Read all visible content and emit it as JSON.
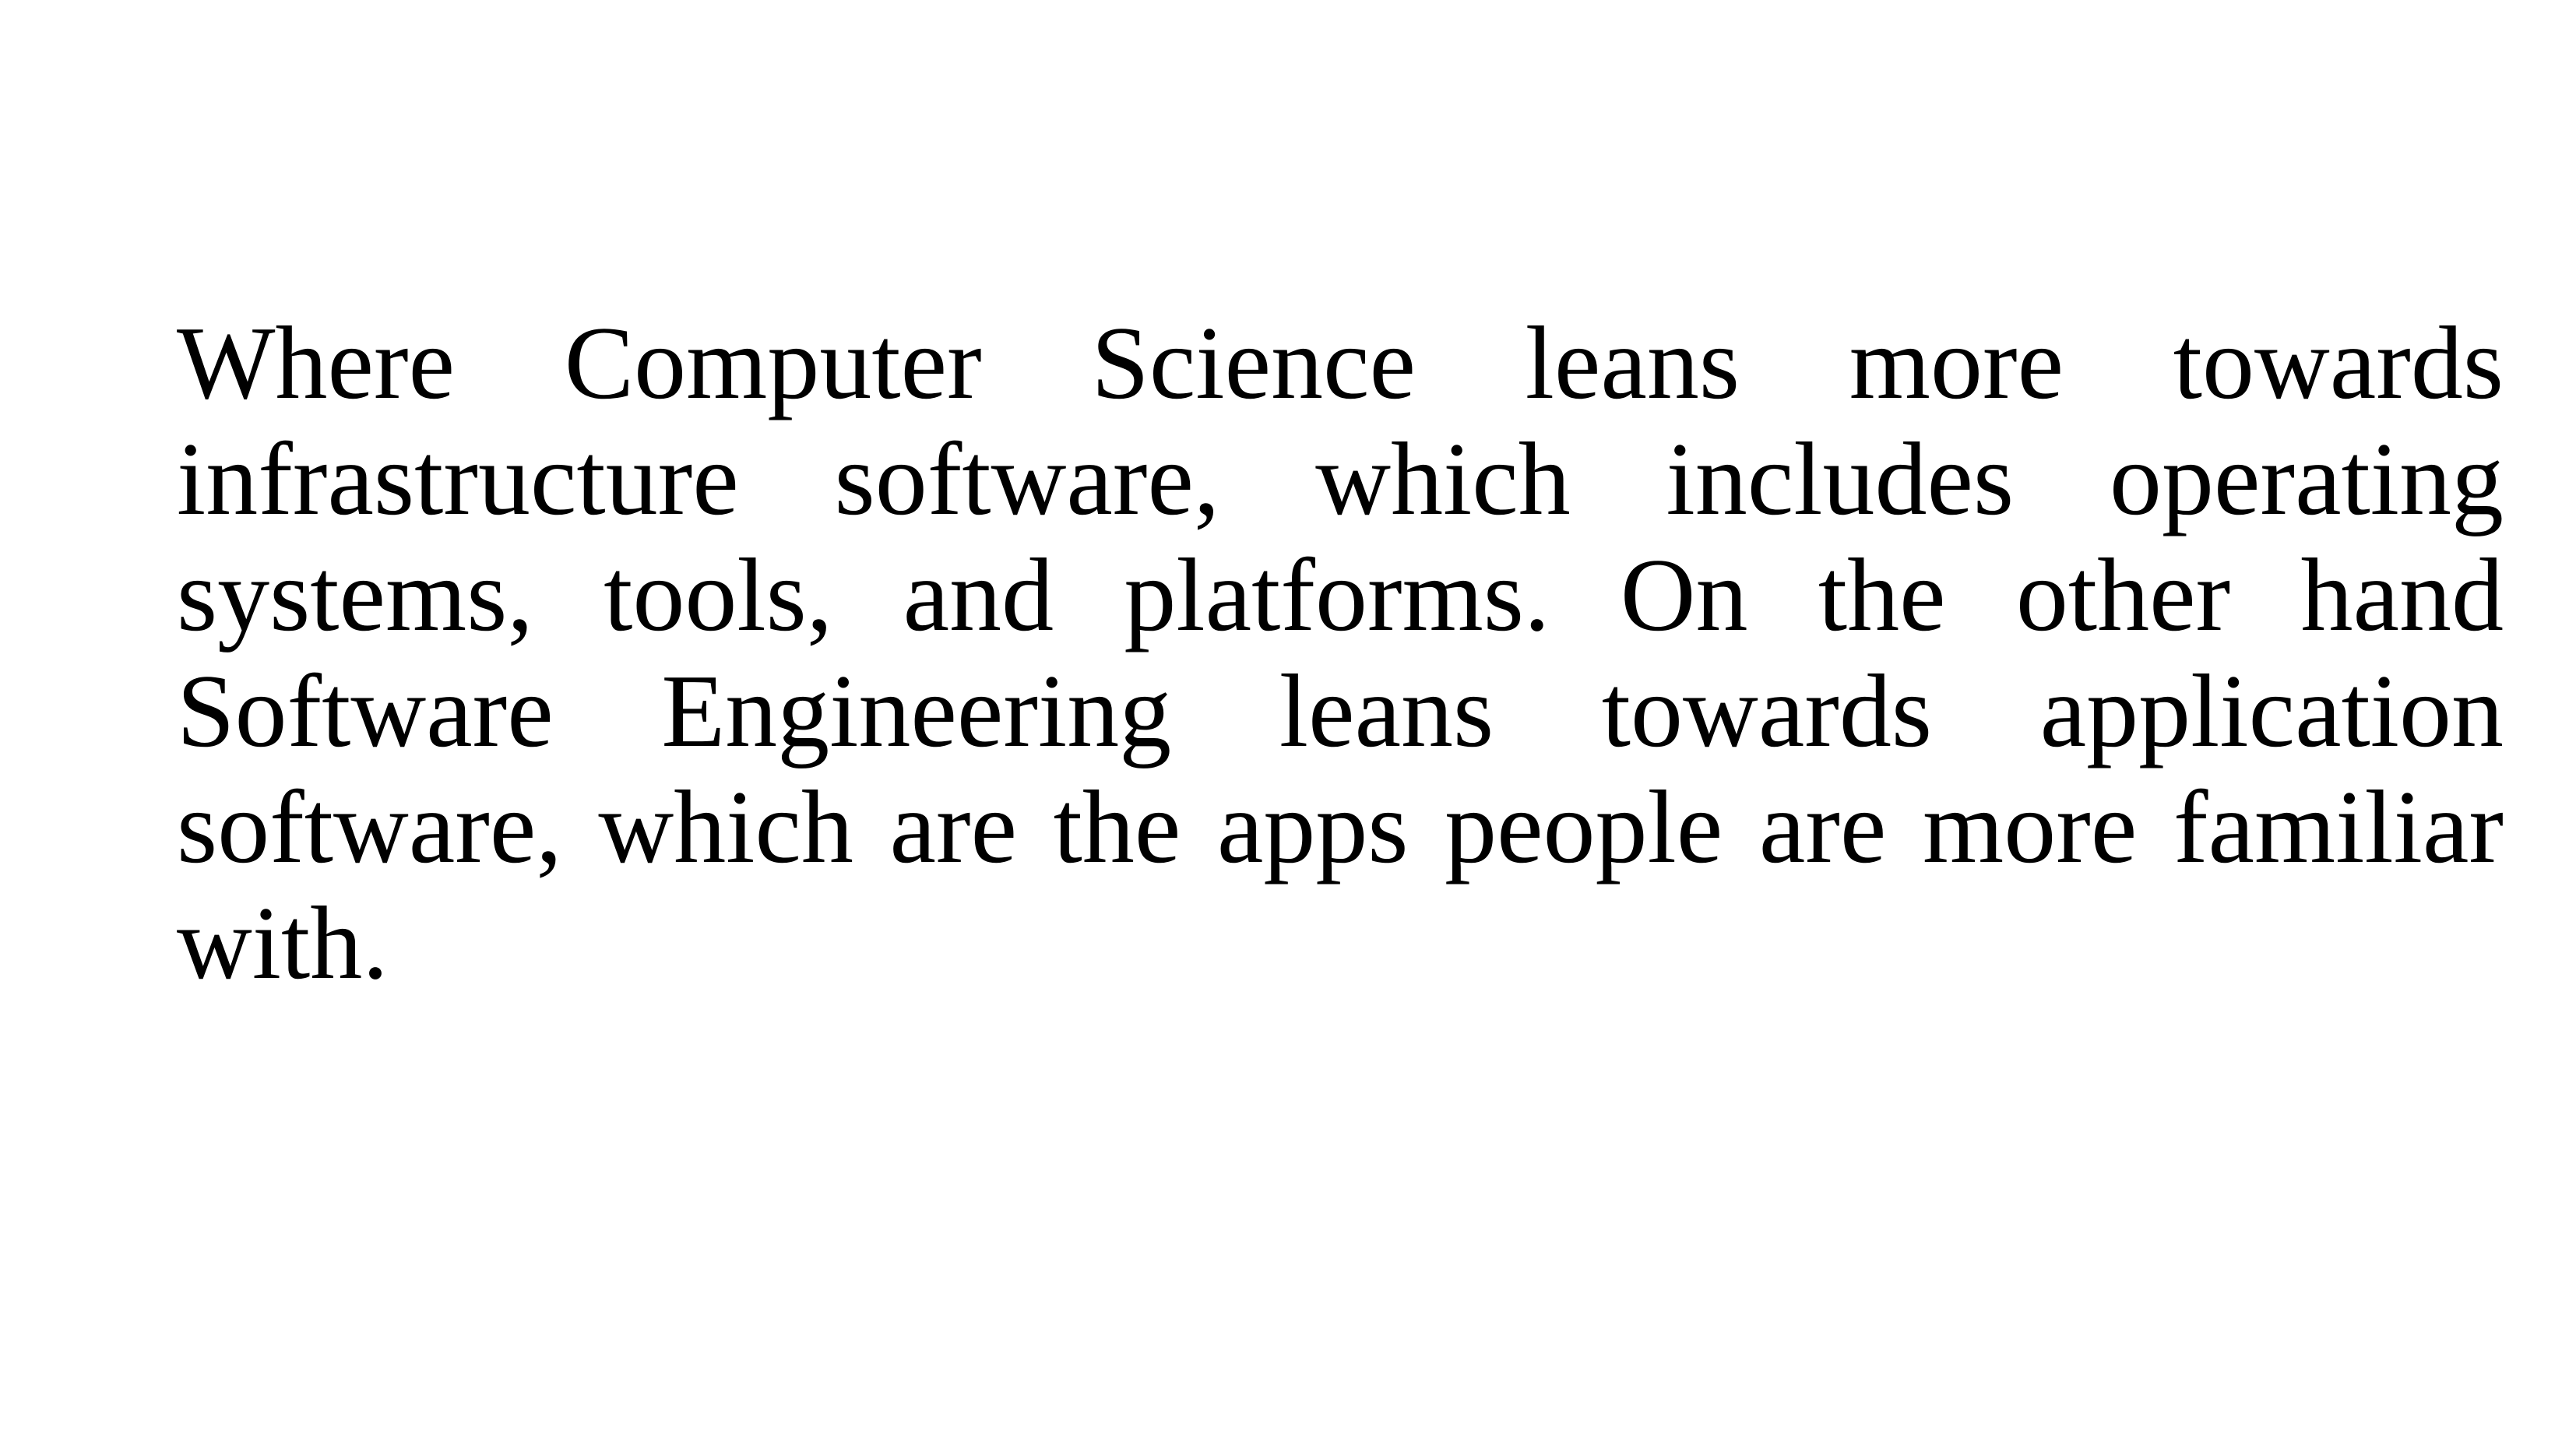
{
  "slide": {
    "paragraph": {
      "lines": [
        "Where Computer Science leans more towards",
        "infrastructure software, which includes operating",
        "systems, tools, and platforms. On the other hand",
        "Software Engineering leans towards application",
        "software, which are the apps people are more familiar",
        "with."
      ]
    }
  },
  "colors": {
    "background": "#ffffff",
    "text": "#000000"
  }
}
